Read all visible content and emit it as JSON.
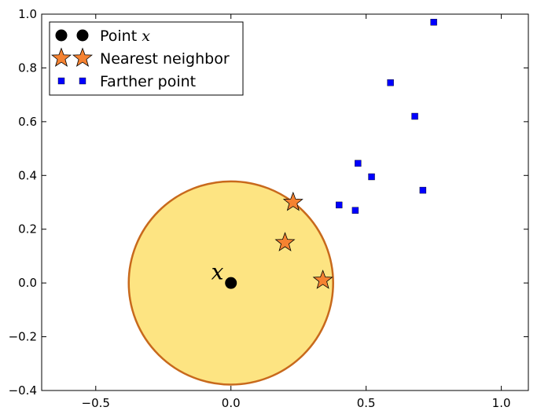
{
  "chart_data": {
    "type": "scatter",
    "title": "",
    "xlabel": "",
    "ylabel": "",
    "xlim": [
      -0.7,
      1.1
    ],
    "ylim": [
      -0.4,
      1.0
    ],
    "x_ticks": [
      -0.5,
      0.0,
      0.5,
      1.0
    ],
    "x_tick_labels": [
      "−0.5",
      "0.0",
      "0.5",
      "1.0"
    ],
    "y_ticks": [
      -0.4,
      -0.2,
      0.0,
      0.2,
      0.4,
      0.6,
      0.8,
      1.0
    ],
    "y_tick_labels": [
      "−0.4",
      "−0.2",
      "0.0",
      "0.2",
      "0.4",
      "0.6",
      "0.8",
      "1.0"
    ],
    "grid": false,
    "legend_position": "top-left",
    "circle": {
      "center": [
        0.0,
        0.0
      ],
      "radius": 0.378,
      "fill_color": "#fde482",
      "edge_color": "#c8691c"
    },
    "series": [
      {
        "name": "Point $x$",
        "legend_label": "Point",
        "legend_math": "x",
        "marker": "circle",
        "color": "#000000",
        "points": [
          [
            0.0,
            0.0
          ]
        ]
      },
      {
        "name": "Nearest neighbor",
        "legend_label": "Nearest neighbor",
        "marker": "star",
        "color": "#f58231",
        "points": [
          [
            0.23,
            0.3
          ],
          [
            0.2,
            0.15
          ],
          [
            0.34,
            0.01
          ]
        ]
      },
      {
        "name": "Farther point",
        "legend_label": "Farther point",
        "marker": "square",
        "color": "#0000ff",
        "points": [
          [
            0.75,
            0.97
          ],
          [
            0.59,
            0.745
          ],
          [
            0.68,
            0.62
          ],
          [
            0.47,
            0.445
          ],
          [
            0.52,
            0.395
          ],
          [
            0.71,
            0.345
          ],
          [
            0.4,
            0.29
          ],
          [
            0.46,
            0.27
          ]
        ]
      }
    ],
    "annotations": [
      {
        "text": "x",
        "x": -0.05,
        "y": 0.02
      }
    ]
  }
}
